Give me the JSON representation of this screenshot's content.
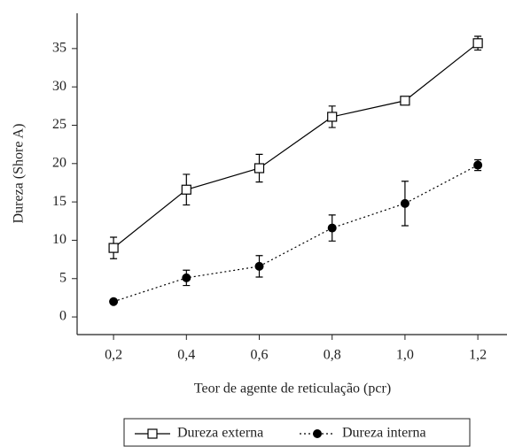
{
  "chart_data": {
    "type": "line",
    "xlabel": "Teor de agente de reticulação (pcr)",
    "ylabel": "Dureza (Shore A)",
    "x": [
      0.2,
      0.4,
      0.6,
      0.8,
      1.0,
      1.2
    ],
    "series": [
      {
        "name": "Dureza externa",
        "color": "#000000",
        "marker": "square",
        "linestyle": "solid",
        "values": [
          9.0,
          16.6,
          19.4,
          26.1,
          28.2,
          35.7
        ],
        "errors": [
          1.4,
          2.0,
          1.8,
          1.4,
          0.5,
          0.9
        ]
      },
      {
        "name": "Dureza interna",
        "color": "#000000",
        "marker": "circle",
        "linestyle": "dotted",
        "values": [
          2.0,
          5.1,
          6.6,
          11.6,
          14.8,
          19.8
        ],
        "errors": [
          0.2,
          1.0,
          1.4,
          1.7,
          2.9,
          0.7
        ]
      }
    ],
    "xlim": [
      0.1,
      1.28
    ],
    "ylim": [
      -2.3,
      39.6
    ],
    "xticks": [
      {
        "value": 0.2,
        "label": "0,2"
      },
      {
        "value": 0.4,
        "label": "0,4"
      },
      {
        "value": 0.6,
        "label": "0,6"
      },
      {
        "value": 0.8,
        "label": "0,8"
      },
      {
        "value": 1.0,
        "label": "1,0"
      },
      {
        "value": 1.2,
        "label": "1,2"
      }
    ],
    "yticks": [
      0,
      5,
      10,
      15,
      20,
      25,
      30,
      35
    ],
    "legend": "bottom"
  }
}
